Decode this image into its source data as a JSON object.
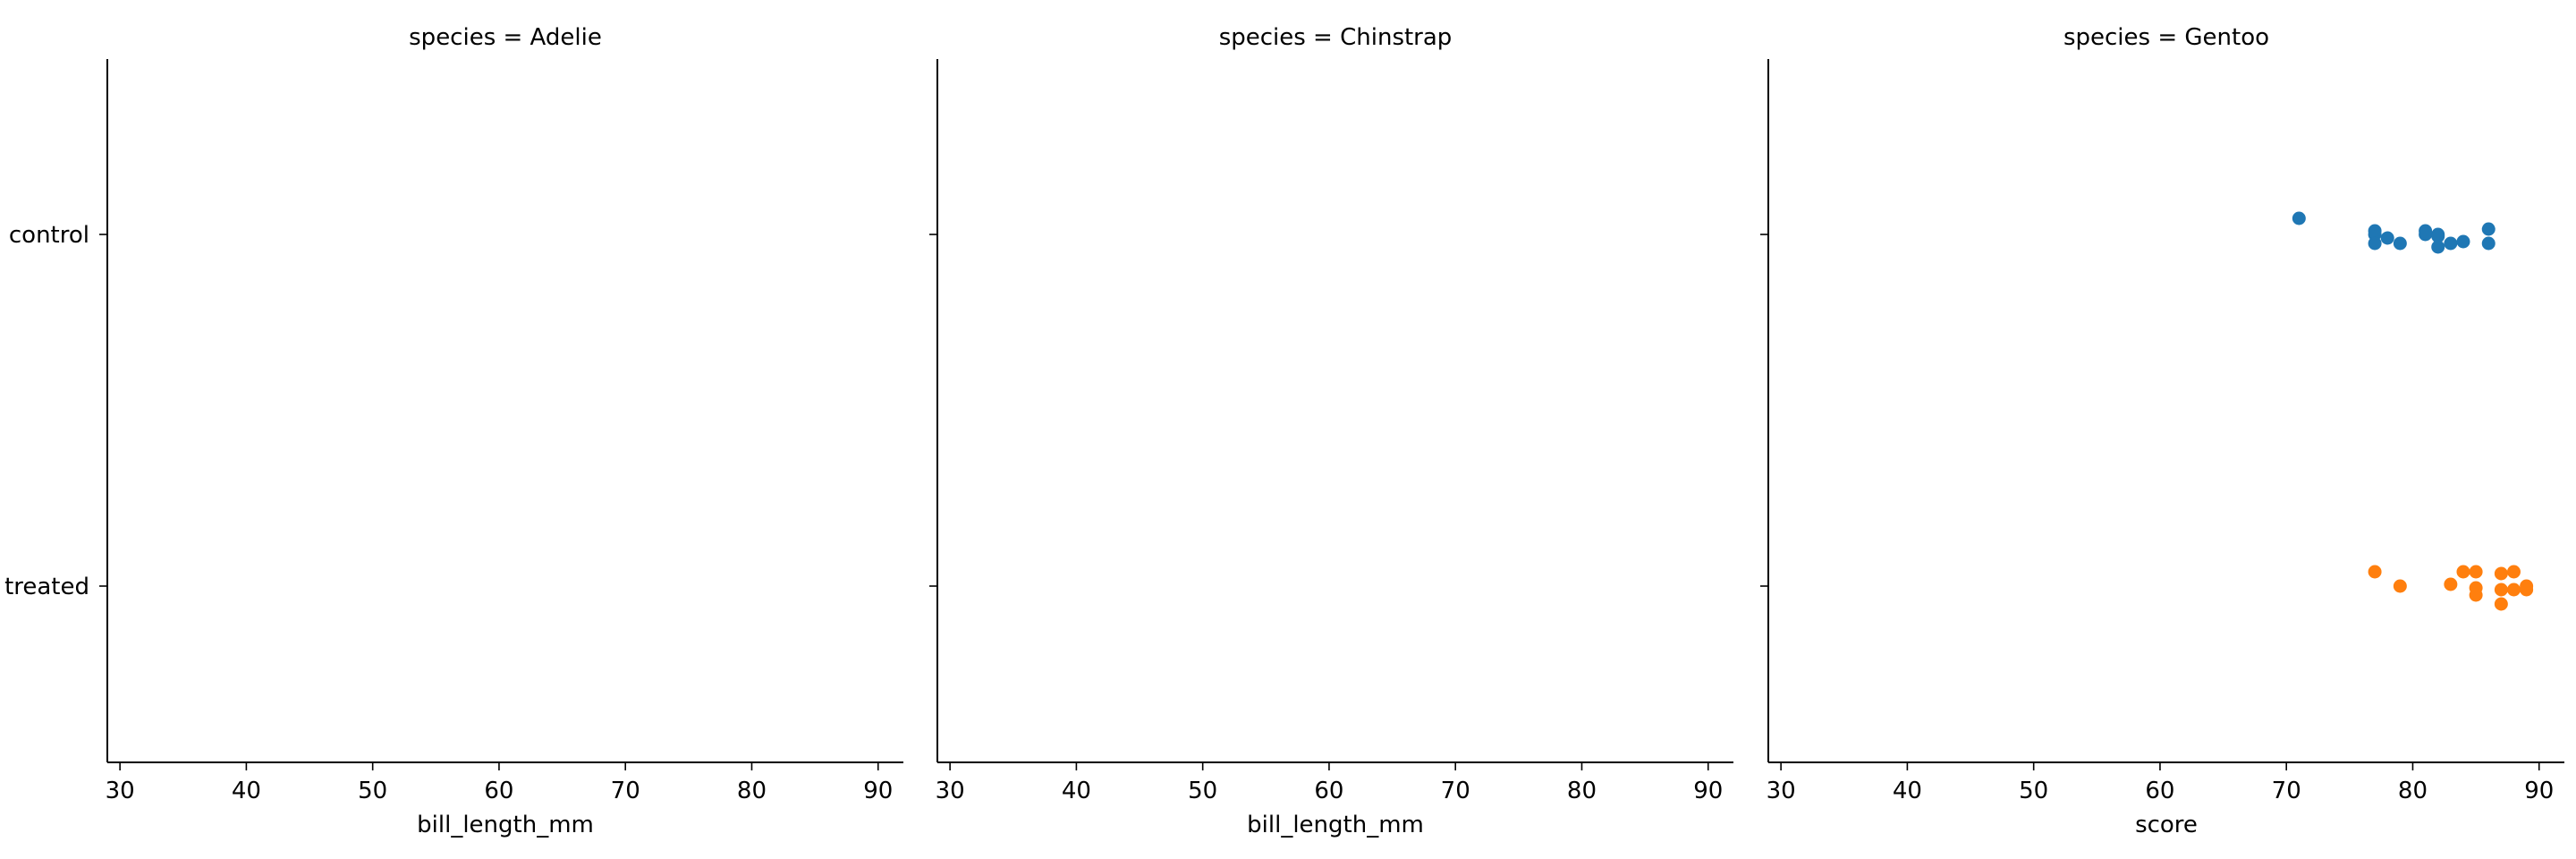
{
  "chart_data": {
    "type": "scatter",
    "facet_column": "species",
    "y_categories": [
      "control",
      "treated"
    ],
    "xlim": [
      29,
      92
    ],
    "x_ticks": [
      30,
      40,
      50,
      60,
      70,
      80,
      90
    ],
    "grid": false,
    "colors": {
      "control": "#1f77b4",
      "treated": "#ff7f0e"
    },
    "panels": [
      {
        "title": "species = Adelie",
        "xlabel": "bill_length_mm",
        "series": []
      },
      {
        "title": "species = Chinstrap",
        "xlabel": "bill_length_mm",
        "series": []
      },
      {
        "title": "species = Gentoo",
        "xlabel": "score",
        "series": [
          {
            "category": "control",
            "points": [
              {
                "x": 71,
                "y": 0.09
              },
              {
                "x": 77,
                "y": 0.02
              },
              {
                "x": 77,
                "y": 0.0
              },
              {
                "x": 77,
                "y": -0.05
              },
              {
                "x": 78,
                "y": -0.02
              },
              {
                "x": 79,
                "y": -0.05
              },
              {
                "x": 81,
                "y": 0.02
              },
              {
                "x": 81,
                "y": 0.0
              },
              {
                "x": 82,
                "y": 0.0
              },
              {
                "x": 82,
                "y": -0.01
              },
              {
                "x": 82,
                "y": -0.07
              },
              {
                "x": 83,
                "y": -0.05
              },
              {
                "x": 84,
                "y": -0.04
              },
              {
                "x": 86,
                "y": 0.03
              },
              {
                "x": 86,
                "y": -0.05
              }
            ]
          },
          {
            "category": "treated",
            "points": [
              {
                "x": 77,
                "y": 0.08
              },
              {
                "x": 79,
                "y": 0.0
              },
              {
                "x": 83,
                "y": 0.01
              },
              {
                "x": 84,
                "y": 0.08
              },
              {
                "x": 85,
                "y": 0.08
              },
              {
                "x": 85,
                "y": -0.01
              },
              {
                "x": 85,
                "y": -0.05
              },
              {
                "x": 87,
                "y": 0.07
              },
              {
                "x": 87,
                "y": -0.02
              },
              {
                "x": 87,
                "y": -0.1
              },
              {
                "x": 88,
                "y": 0.08
              },
              {
                "x": 88,
                "y": -0.02
              },
              {
                "x": 89,
                "y": 0.0
              },
              {
                "x": 89,
                "y": -0.02
              }
            ]
          }
        ]
      }
    ]
  }
}
